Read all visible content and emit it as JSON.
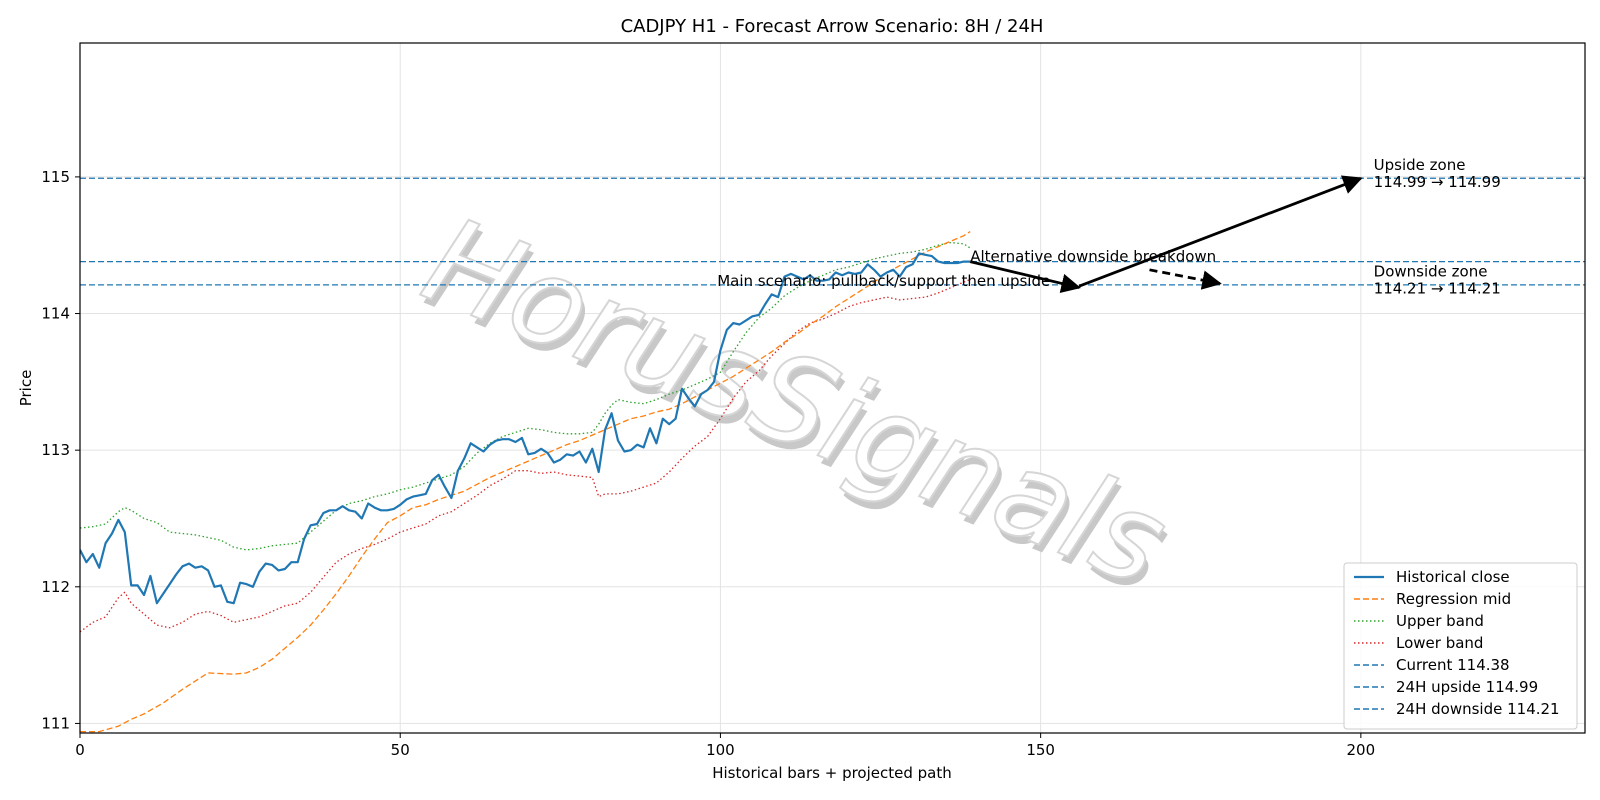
{
  "chart_data": {
    "type": "line",
    "title": "CADJPY H1 - Forecast Arrow Scenario: 8H / 24H",
    "xlabel": "Historical bars + projected path",
    "ylabel": "Price",
    "xlim": [
      0,
      235
    ],
    "ylim": [
      110.93,
      115.98
    ],
    "xticks": [
      0,
      50,
      100,
      150,
      200
    ],
    "yticks": [
      111,
      112,
      113,
      114,
      115
    ],
    "grid": true,
    "legend_position": "lower right",
    "watermark": "HorusSignals",
    "series": [
      {
        "name": "Historical close",
        "style": "solid",
        "color": "#1f77b4",
        "x": [
          0,
          1,
          2,
          3,
          4,
          5,
          6,
          7,
          8,
          9,
          10,
          11,
          12,
          13,
          14,
          15,
          16,
          17,
          18,
          19,
          20,
          21,
          22,
          23,
          24,
          25,
          26,
          27,
          28,
          29,
          30,
          31,
          32,
          33,
          34,
          35,
          36,
          37,
          38,
          39,
          40,
          41,
          42,
          43,
          44,
          45,
          46,
          47,
          48,
          49,
          50,
          51,
          52,
          53,
          54,
          55,
          56,
          57,
          58,
          59,
          60,
          61,
          62,
          63,
          64,
          65,
          66,
          67,
          68,
          69,
          70,
          71,
          72,
          73,
          74,
          75,
          76,
          77,
          78,
          79,
          80,
          81,
          82,
          83,
          84,
          85,
          86,
          87,
          88,
          89,
          90,
          91,
          92,
          93,
          94,
          95,
          96,
          97,
          98,
          99,
          100,
          101,
          102,
          103,
          104,
          105,
          106,
          107,
          108,
          109,
          110,
          111,
          112,
          113,
          114,
          115,
          116,
          117,
          118,
          119,
          120,
          121,
          122,
          123,
          124,
          125,
          126,
          127,
          128,
          129,
          130,
          131,
          132,
          133,
          134,
          135,
          136,
          137,
          138,
          139
        ],
        "values": [
          112.27,
          112.18,
          112.24,
          112.14,
          112.32,
          112.39,
          112.49,
          112.4,
          112.01,
          112.01,
          111.94,
          112.08,
          111.88,
          111.95,
          112.02,
          112.09,
          112.15,
          112.17,
          112.14,
          112.15,
          112.12,
          112.0,
          112.01,
          111.89,
          111.88,
          112.03,
          112.02,
          112.0,
          112.11,
          112.17,
          112.16,
          112.12,
          112.13,
          112.18,
          112.18,
          112.35,
          112.45,
          112.46,
          112.54,
          112.56,
          112.56,
          112.59,
          112.56,
          112.55,
          112.5,
          112.61,
          112.58,
          112.56,
          112.56,
          112.57,
          112.6,
          112.64,
          112.66,
          112.67,
          112.68,
          112.78,
          112.82,
          112.73,
          112.65,
          112.85,
          112.94,
          113.05,
          113.02,
          112.99,
          113.04,
          113.07,
          113.08,
          113.08,
          113.06,
          113.09,
          112.97,
          112.98,
          113.01,
          112.98,
          112.91,
          112.93,
          112.97,
          112.96,
          112.99,
          112.91,
          113.01,
          112.84,
          113.15,
          113.27,
          113.07,
          112.99,
          113.0,
          113.04,
          113.02,
          113.16,
          113.05,
          113.23,
          113.19,
          113.23,
          113.45,
          113.38,
          113.32,
          113.41,
          113.44,
          113.5,
          113.73,
          113.88,
          113.93,
          113.92,
          113.95,
          113.98,
          113.99,
          114.07,
          114.14,
          114.12,
          114.27,
          114.29,
          114.27,
          114.25,
          114.28,
          114.24,
          114.24,
          114.25,
          114.3,
          114.28,
          114.3,
          114.29,
          114.3,
          114.36,
          114.32,
          114.27,
          114.3,
          114.32,
          114.27,
          114.34,
          114.36,
          114.44,
          114.43,
          114.42,
          114.38,
          114.37,
          114.37,
          114.37,
          114.38,
          114.38
        ]
      },
      {
        "name": "Regression mid",
        "style": "dashed",
        "color": "#ff7f0e",
        "x": [
          0,
          3,
          6,
          8,
          10,
          13,
          16,
          20,
          24,
          26,
          28,
          30,
          32,
          34,
          36,
          38,
          40,
          42,
          44,
          46,
          48,
          50,
          52,
          54,
          56,
          58,
          60,
          62,
          64,
          66,
          68,
          70,
          72,
          74,
          76,
          78,
          80,
          82,
          84,
          86,
          88,
          90,
          92,
          94,
          96,
          98,
          100,
          102,
          104,
          106,
          108,
          110,
          112,
          114,
          116,
          118,
          120,
          122,
          124,
          126,
          128,
          130,
          132,
          134,
          136,
          138,
          139
        ],
        "values": [
          110.94,
          110.94,
          110.98,
          111.03,
          111.07,
          111.15,
          111.25,
          111.37,
          111.36,
          111.37,
          111.41,
          111.47,
          111.55,
          111.63,
          111.72,
          111.83,
          111.95,
          112.08,
          112.22,
          112.35,
          112.47,
          112.52,
          112.58,
          112.6,
          112.64,
          112.67,
          112.7,
          112.75,
          112.8,
          112.84,
          112.88,
          112.92,
          112.96,
          113.0,
          113.04,
          113.07,
          113.11,
          113.15,
          113.19,
          113.23,
          113.25,
          113.28,
          113.3,
          113.34,
          113.39,
          113.44,
          113.49,
          113.54,
          113.6,
          113.66,
          113.72,
          113.79,
          113.85,
          113.92,
          113.98,
          114.05,
          114.11,
          114.17,
          114.23,
          114.3,
          114.35,
          114.4,
          114.45,
          114.49,
          114.53,
          114.57,
          114.6
        ]
      },
      {
        "name": "Upper band",
        "style": "dotted",
        "color": "#2ca02c",
        "x": [
          0,
          2,
          4,
          6,
          7,
          8,
          10,
          12,
          14,
          16,
          18,
          20,
          22,
          24,
          26,
          28,
          30,
          32,
          34,
          36,
          38,
          40,
          42,
          44,
          46,
          48,
          50,
          52,
          54,
          56,
          58,
          60,
          62,
          64,
          66,
          68,
          70,
          72,
          74,
          76,
          78,
          80,
          81,
          82,
          83,
          84,
          86,
          88,
          90,
          92,
          94,
          96,
          98,
          100,
          102,
          104,
          106,
          108,
          110,
          112,
          114,
          116,
          118,
          120,
          122,
          124,
          126,
          128,
          130,
          132,
          134,
          136,
          138,
          139
        ],
        "values": [
          112.43,
          112.44,
          112.46,
          112.55,
          112.58,
          112.56,
          112.5,
          112.47,
          112.4,
          112.39,
          112.38,
          112.36,
          112.34,
          112.29,
          112.27,
          112.28,
          112.3,
          112.31,
          112.32,
          112.4,
          112.48,
          112.56,
          112.61,
          112.63,
          112.66,
          112.68,
          112.71,
          112.73,
          112.76,
          112.79,
          112.82,
          112.88,
          112.98,
          113.05,
          113.1,
          113.13,
          113.16,
          113.15,
          113.13,
          113.12,
          113.12,
          113.13,
          113.19,
          113.27,
          113.33,
          113.37,
          113.35,
          113.34,
          113.37,
          113.41,
          113.44,
          113.48,
          113.52,
          113.57,
          113.72,
          113.86,
          113.97,
          114.04,
          114.13,
          114.19,
          114.24,
          114.28,
          114.32,
          114.34,
          114.37,
          114.4,
          114.42,
          114.44,
          114.45,
          114.47,
          114.5,
          114.52,
          114.51,
          114.48
        ]
      },
      {
        "name": "Lower band",
        "style": "dotted",
        "color": "#d62728",
        "x": [
          0,
          2,
          4,
          6,
          7,
          8,
          10,
          12,
          14,
          16,
          18,
          20,
          22,
          24,
          26,
          28,
          30,
          32,
          34,
          36,
          38,
          40,
          42,
          44,
          46,
          48,
          50,
          52,
          54,
          56,
          58,
          60,
          62,
          64,
          66,
          68,
          70,
          72,
          74,
          76,
          78,
          80,
          81,
          82,
          84,
          86,
          88,
          90,
          92,
          94,
          96,
          98,
          100,
          102,
          104,
          106,
          108,
          110,
          112,
          114,
          116,
          118,
          120,
          122,
          124,
          126,
          128,
          130,
          132,
          134,
          136,
          138,
          139
        ],
        "values": [
          111.67,
          111.74,
          111.78,
          111.92,
          111.96,
          111.88,
          111.8,
          111.72,
          111.7,
          111.74,
          111.8,
          111.82,
          111.79,
          111.74,
          111.76,
          111.78,
          111.82,
          111.86,
          111.88,
          111.96,
          112.07,
          112.18,
          112.24,
          112.28,
          112.31,
          112.35,
          112.4,
          112.43,
          112.46,
          112.52,
          112.55,
          112.61,
          112.67,
          112.74,
          112.79,
          112.85,
          112.85,
          112.83,
          112.84,
          112.82,
          112.81,
          112.8,
          112.66,
          112.68,
          112.68,
          112.7,
          112.73,
          112.76,
          112.84,
          112.94,
          113.03,
          113.1,
          113.23,
          113.38,
          113.5,
          113.58,
          113.69,
          113.78,
          113.87,
          113.93,
          113.96,
          114.0,
          114.05,
          114.08,
          114.1,
          114.12,
          114.1,
          114.11,
          114.12,
          114.15,
          114.19,
          114.23,
          114.25
        ]
      }
    ],
    "hlines": [
      {
        "name": "Current 114.38",
        "y": 114.38,
        "style": "dashed",
        "color": "#1f77b4"
      },
      {
        "name": "24H upside 114.99",
        "y": 114.99,
        "style": "dashed",
        "color": "#1f77b4"
      },
      {
        "name": "24H downside 114.21",
        "y": 114.21,
        "style": "dashed",
        "color": "#1f77b4"
      }
    ],
    "arrows": [
      {
        "from": [
          139,
          114.38
        ],
        "to": [
          156,
          114.19
        ],
        "style": "solid"
      },
      {
        "from": [
          156,
          114.2
        ],
        "to": [
          200,
          114.99
        ],
        "style": "solid"
      },
      {
        "from": [
          167,
          114.32
        ],
        "to": [
          178,
          114.22
        ],
        "style": "dashed"
      }
    ],
    "annotations": [
      {
        "name": "main-scenario-label",
        "text": "Main scenario: pullback/support then upside",
        "x": 99.5,
        "y": 114.2,
        "anchor": "start"
      },
      {
        "name": "alt-scenario-label",
        "text": "Alternative downside breakdown",
        "x": 139,
        "y": 114.38,
        "anchor": "start"
      },
      {
        "name": "upside-zone-label",
        "lines": [
          "Upside zone",
          "114.99 → 114.99"
        ],
        "x": 202,
        "y": 115.05
      },
      {
        "name": "downside-zone-label",
        "lines": [
          "Downside zone",
          "114.21 → 114.21"
        ],
        "x": 202,
        "y": 114.27
      }
    ]
  }
}
